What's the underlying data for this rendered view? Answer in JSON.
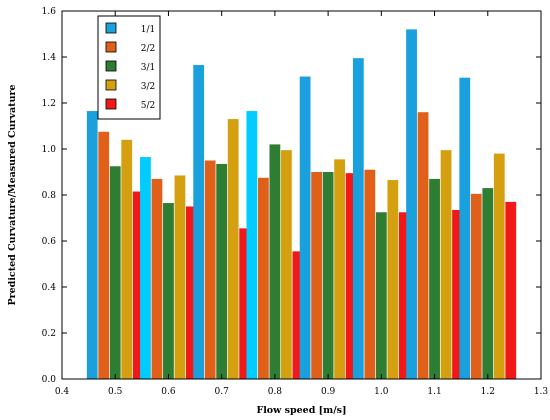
{
  "chart_data": {
    "type": "bar",
    "title": "",
    "xlabel": "Flow speed [m/s]",
    "ylabel": "Predicted Curvature/Measured Curvature",
    "x": [
      0.5,
      0.6,
      0.7,
      0.8,
      0.9,
      1.0,
      1.1,
      1.2
    ],
    "xlim": [
      0.4,
      1.3
    ],
    "ylim": [
      0,
      1.6
    ],
    "xticks": [
      "0.4",
      "0.5",
      "0.6",
      "0.7",
      "0.8",
      "0.9",
      "1.0",
      "1.1",
      "1.2",
      "1.3"
    ],
    "yticks": [
      "0.0",
      "0.2",
      "0.4",
      "0.6",
      "0.8",
      "1.0",
      "1.2",
      "1.4",
      "1.6"
    ],
    "grid": false,
    "legend_position": "top-left",
    "series": [
      {
        "name": "1/1",
        "color": "#1aa0dc",
        "values": [
          1.165,
          0.965,
          1.365,
          1.165,
          1.315,
          1.395,
          1.52,
          1.31
        ]
      },
      {
        "name": "2/2",
        "color": "#e0601a",
        "values": [
          1.075,
          0.87,
          0.95,
          0.875,
          0.9,
          0.91,
          1.16,
          0.805
        ]
      },
      {
        "name": "3/1",
        "color": "#2e7d32",
        "values": [
          0.925,
          0.765,
          0.935,
          1.02,
          0.9,
          0.725,
          0.87,
          0.83
        ]
      },
      {
        "name": "3/2",
        "color": "#d4a010",
        "values": [
          1.04,
          0.885,
          1.13,
          0.995,
          0.955,
          0.865,
          0.995,
          0.98
        ]
      },
      {
        "name": "5/2",
        "color": "#f01818",
        "values": [
          0.815,
          0.75,
          0.655,
          0.555,
          0.895,
          0.725,
          0.735,
          0.77
        ]
      }
    ],
    "highlight_color": "#00ccff",
    "highlighted_bars": [
      [
        0,
        1
      ],
      [
        0,
        3
      ]
    ]
  }
}
